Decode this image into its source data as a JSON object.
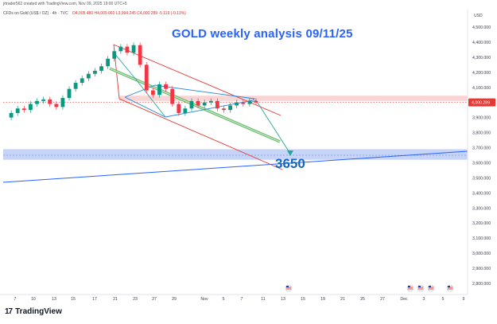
{
  "header": {
    "created_by": "jrtrader562 created with TradingView.com, Nov 09, 2025 19:00 UTC+5",
    "symbol": "CFDs on Gold (US$ / OZ) · 4h · TVC",
    "open": "O4,005.480",
    "high": "H4,009.060",
    "low": "L3,994.245",
    "close": "C4,000.289",
    "change": "-5.119 (-0.13%)"
  },
  "currency": "USD",
  "footer_brand": "TradingView",
  "colors": {
    "accent_blue": "#2962ff",
    "channel_red": "#e53935",
    "bear_green": "#26a69a",
    "price_label": "#e53935",
    "zone_blue": "#b3c6f5",
    "zone_red": "#f7c9c9"
  },
  "chart_data": {
    "type": "line",
    "title": "GOLD weekly analysis 09/11/25",
    "y_axis": {
      "ylim": [
        2750000,
        4550000
      ],
      "ticks": [
        4500000,
        4400000,
        4300000,
        4200000,
        4100000,
        3900000,
        3800000,
        3700000,
        3600000,
        3500000,
        3400000,
        3300000,
        3200000,
        3100000,
        3000000,
        2900000,
        2800000
      ],
      "tick_labels": [
        "4,500.000",
        "4,400.000",
        "4,300.000",
        "4,200.000",
        "4,100.000",
        "3,900.000",
        "3,800.000",
        "3,700.000",
        "3,600.000",
        "3,500.000",
        "3,400.000",
        "3,300.000",
        "3,200.000",
        "3,100.000",
        "3,000.000",
        "2,900.000",
        "2,800.000"
      ]
    },
    "x_axis": {
      "tick_labels": [
        "7",
        "10",
        "13",
        "15",
        "17",
        "21",
        "23",
        "27",
        "29",
        "Nov",
        "5",
        "7",
        "11",
        "13",
        "15",
        "19",
        "21",
        "25",
        "27",
        "Dec",
        "3",
        "5",
        "9"
      ]
    },
    "current_price": {
      "value": 4000289,
      "label": "4,000.289"
    },
    "price_series": [
      3900000,
      3930000,
      3960000,
      3950000,
      3990000,
      4010000,
      4020000,
      3990000,
      3970000,
      4030000,
      4090000,
      4130000,
      4160000,
      4190000,
      4210000,
      4240000,
      4290000,
      4340000,
      4370000,
      4330000,
      4380000,
      4250000,
      4080000,
      4050000,
      4120000,
      4090000,
      3990000,
      3930000,
      3960000,
      4010000,
      3980000,
      4000000,
      4010000,
      3960000,
      3950000,
      3980000,
      4000000,
      3990000,
      4010000,
      4000289
    ],
    "annotations": {
      "target_label": "3650",
      "target_value": 3650000,
      "support_zone": [
        3620000,
        3690000
      ],
      "resistance_zone": [
        4010000,
        4045000
      ]
    }
  }
}
